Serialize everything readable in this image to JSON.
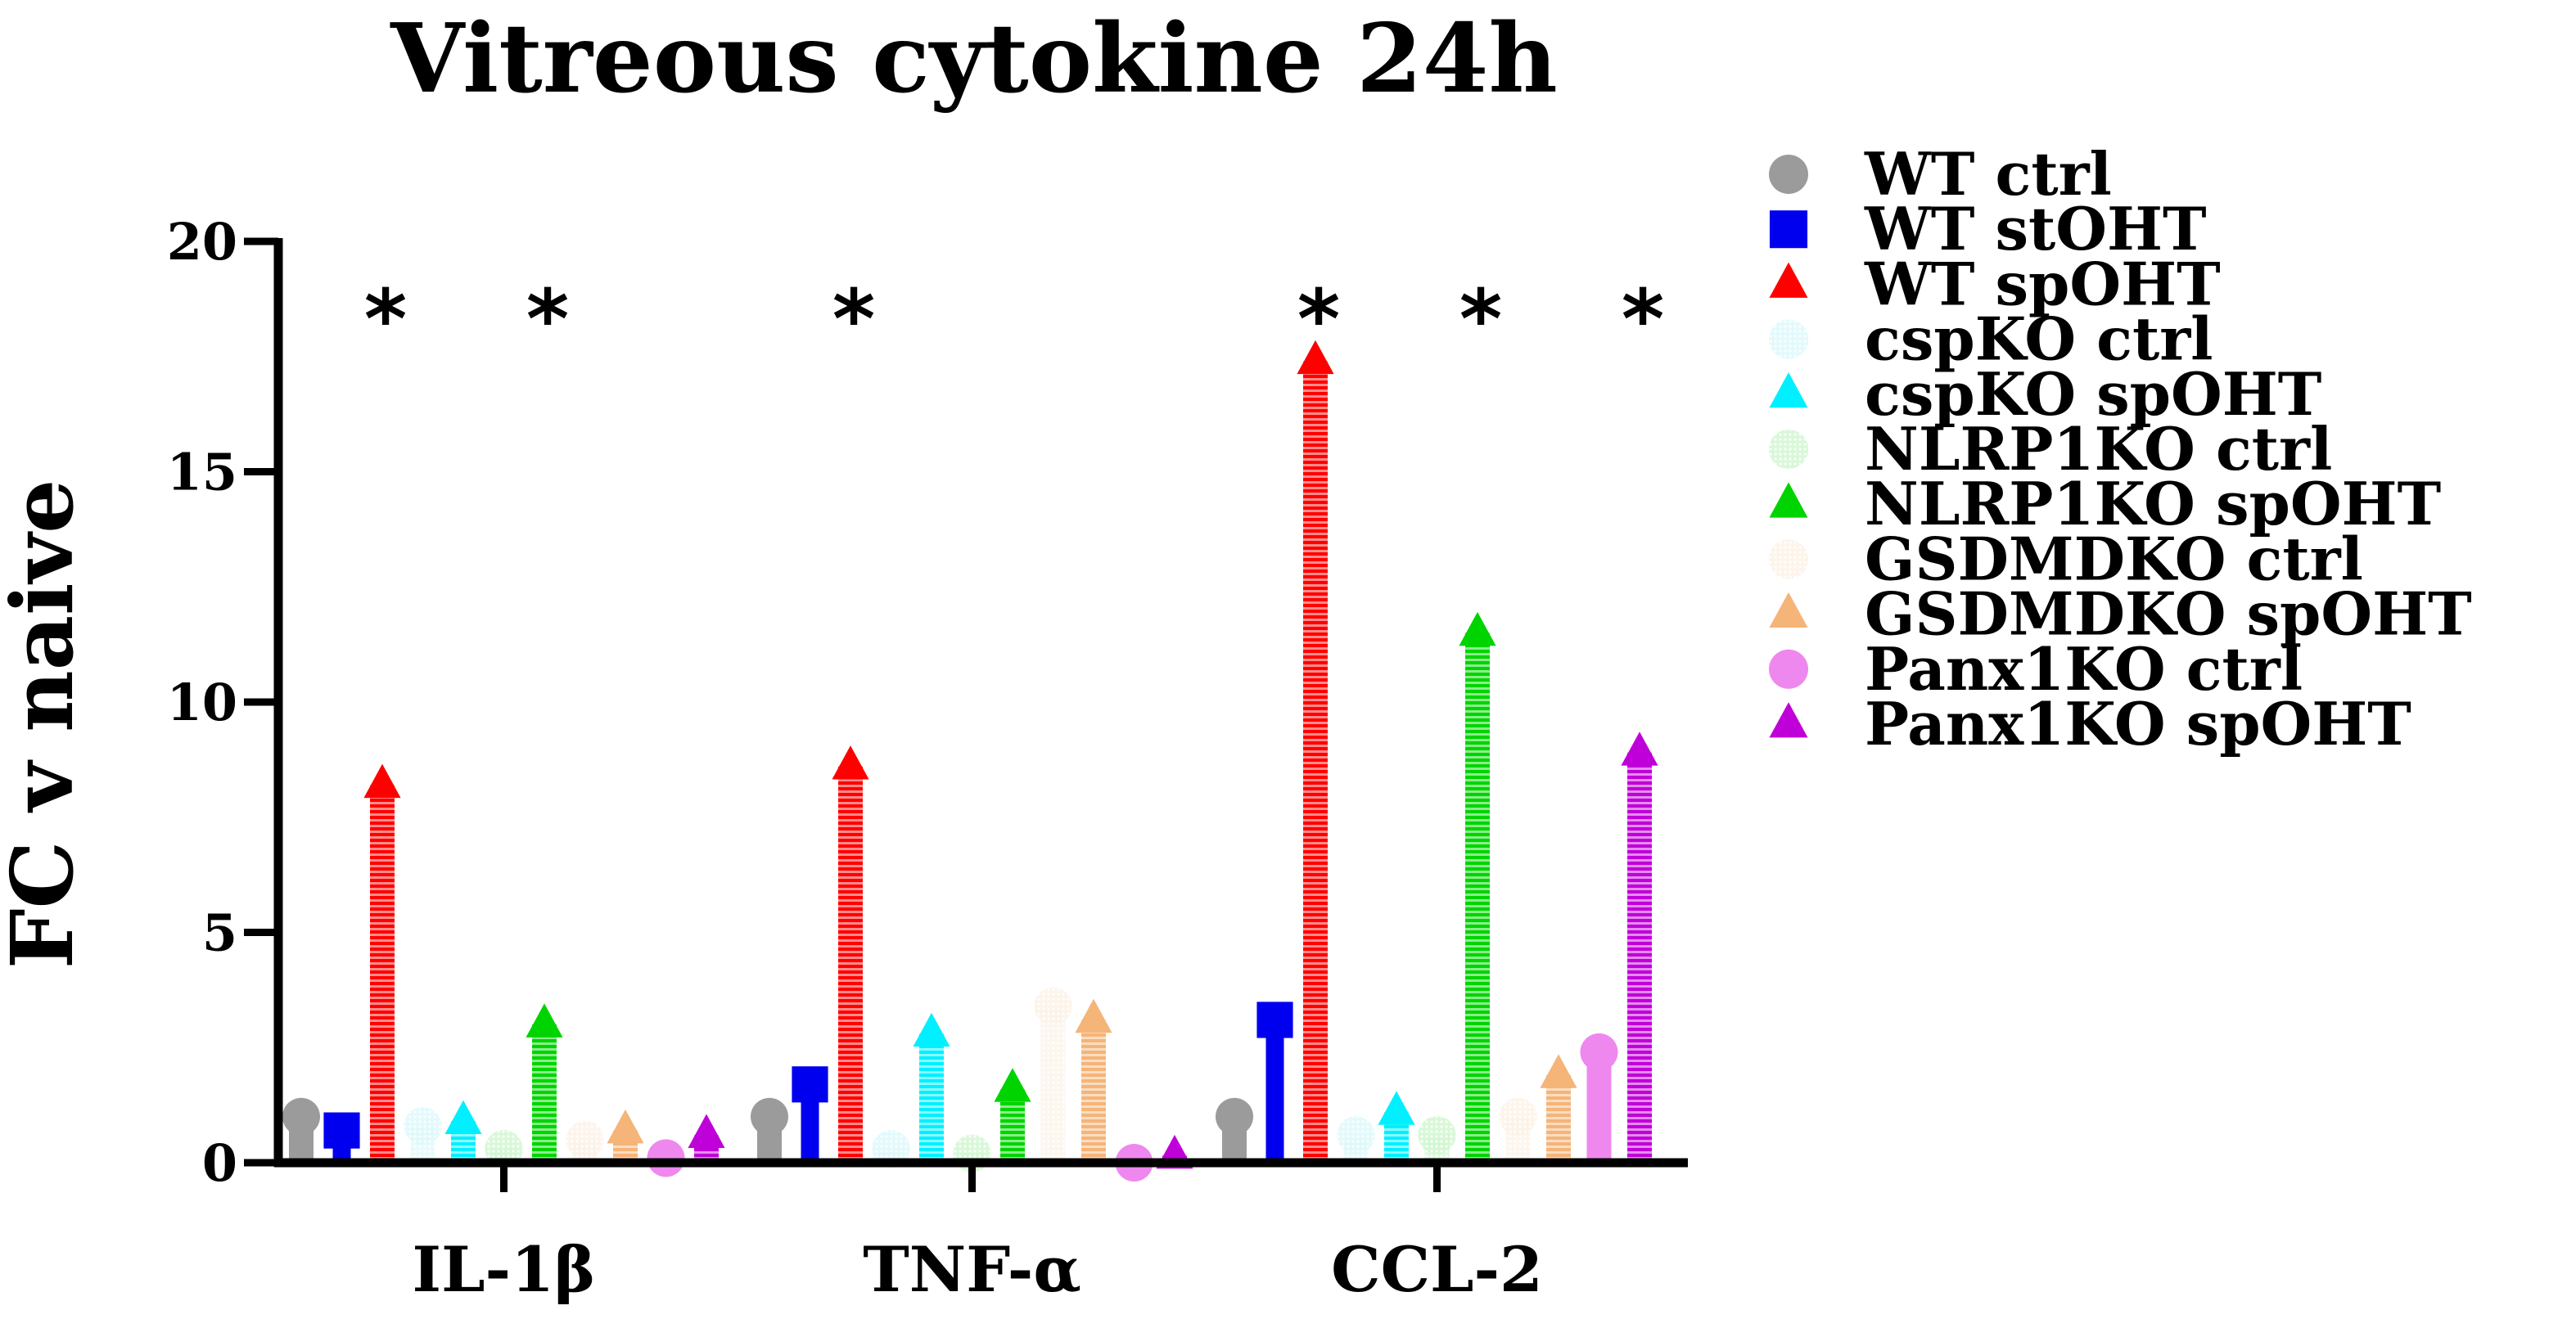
{
  "chart_data": {
    "type": "bar",
    "title": "Vitreous cytokine 24h",
    "xlabel": "",
    "ylabel": "FC v naive",
    "ylim": [
      0,
      20
    ],
    "yticks": [
      0,
      5,
      10,
      15,
      20
    ],
    "categories": [
      "IL-1β",
      "TNF-α",
      "CCL-2"
    ],
    "significance_marker": "*",
    "series": [
      {
        "name": "WT ctrl",
        "color": "#9b9b9b",
        "marker": "circle",
        "fill": "solid",
        "values": [
          1.0,
          1.0,
          1.0
        ],
        "significant": [
          false,
          false,
          false
        ]
      },
      {
        "name": "WT stOHT",
        "color": "#0000ee",
        "marker": "square",
        "fill": "solid",
        "values": [
          0.7,
          1.7,
          3.1
        ],
        "significant": [
          false,
          false,
          false
        ]
      },
      {
        "name": "WT spOHT",
        "color": "#ff0000",
        "marker": "triangle",
        "fill": "hatched",
        "values": [
          8.2,
          8.6,
          17.4
        ],
        "significant": [
          true,
          true,
          true
        ]
      },
      {
        "name": "cspKO ctrl",
        "color": "#a8eef4",
        "marker": "circle-dotted",
        "fill": "dotted",
        "values": [
          0.8,
          0.3,
          0.6
        ],
        "significant": [
          false,
          false,
          false
        ]
      },
      {
        "name": "cspKO spOHT",
        "color": "#00f0ff",
        "marker": "triangle",
        "fill": "hatched",
        "values": [
          0.9,
          2.8,
          1.1
        ],
        "significant": [
          false,
          false,
          false
        ]
      },
      {
        "name": "NLRP1KO ctrl",
        "color": "#86e886",
        "marker": "circle-dotted",
        "fill": "dotted",
        "values": [
          0.3,
          0.2,
          0.6
        ],
        "significant": [
          false,
          false,
          false
        ]
      },
      {
        "name": "NLRP1KO spOHT",
        "color": "#00d400",
        "marker": "triangle",
        "fill": "hatched",
        "values": [
          3.0,
          1.6,
          11.5
        ],
        "significant": [
          true,
          false,
          true
        ]
      },
      {
        "name": "GSDMDKO ctrl",
        "color": "#f8ddc0",
        "marker": "circle-dotted",
        "fill": "dotted",
        "values": [
          0.5,
          3.4,
          1.0
        ],
        "significant": [
          false,
          false,
          false
        ]
      },
      {
        "name": "GSDMDKO spOHT",
        "color": "#f5b478",
        "marker": "triangle",
        "fill": "hatched",
        "values": [
          0.7,
          3.1,
          1.9
        ],
        "significant": [
          false,
          false,
          false
        ]
      },
      {
        "name": "Panx1KO ctrl",
        "color": "#ee88ee",
        "marker": "circle",
        "fill": "solid",
        "values": [
          0.1,
          0.0,
          2.4
        ],
        "significant": [
          false,
          false,
          false
        ]
      },
      {
        "name": "Panx1KO spOHT",
        "color": "#c000d8",
        "marker": "triangle",
        "fill": "hatched",
        "values": [
          0.6,
          0.15,
          8.9
        ],
        "significant": [
          false,
          false,
          true
        ]
      }
    ]
  }
}
